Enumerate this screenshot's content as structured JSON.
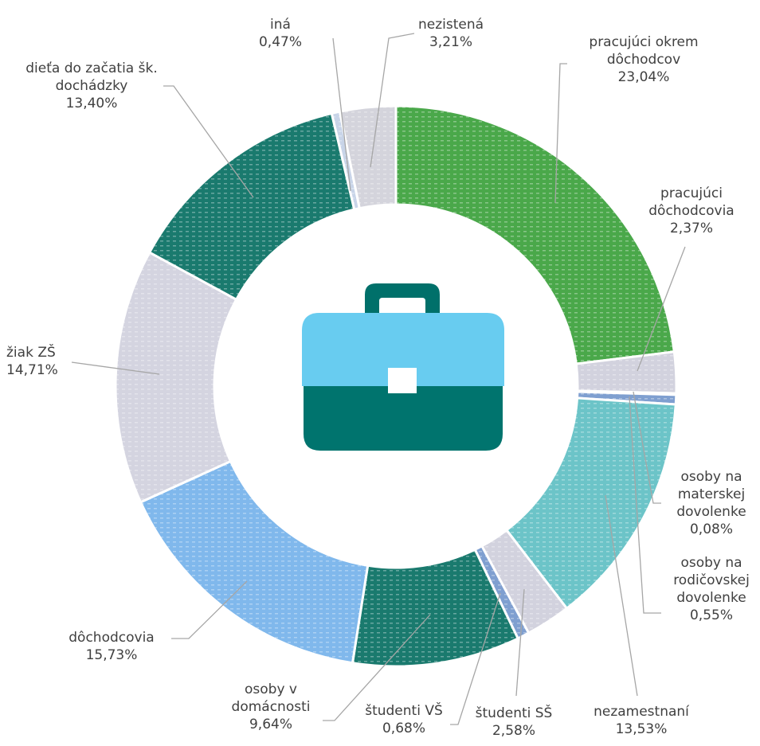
{
  "chart_data": {
    "type": "pie",
    "donut": true,
    "categories": [
      "pracujúci okrem dôchodcov",
      "pracujúci dôchodcovia",
      "osoby na materskej dovolenke",
      "osoby na rodičovskej dovolenke",
      "nezamestnaní",
      "študenti SŠ",
      "študenti VŠ",
      "osoby v domácnosti",
      "dôchodcovia",
      "žiak ZŠ",
      "dieťa do začatia šk. dochádzky",
      "iná",
      "nezistená"
    ],
    "values": [
      23.04,
      2.37,
      0.08,
      0.55,
      13.53,
      2.58,
      0.68,
      9.64,
      15.73,
      14.71,
      13.4,
      0.47,
      3.21
    ],
    "value_labels": [
      "23,04%",
      "2,37%",
      "0,08%",
      "0,55%",
      "13,53%",
      "2,58%",
      "0,68%",
      "9,64%",
      "15,73%",
      "14,71%",
      "13,40%",
      "0,47%",
      "3,21%"
    ],
    "colors": [
      "#4aa84a",
      "#d2d2de",
      "#7f9fd0",
      "#7f9fd0",
      "#6cc4c8",
      "#d2d2de",
      "#7f9fd0",
      "#1a7a6e",
      "#80b8ec",
      "#d4d4e0",
      "#1a7a6e",
      "#c8d4e8",
      "#d4d4dc"
    ]
  }
}
